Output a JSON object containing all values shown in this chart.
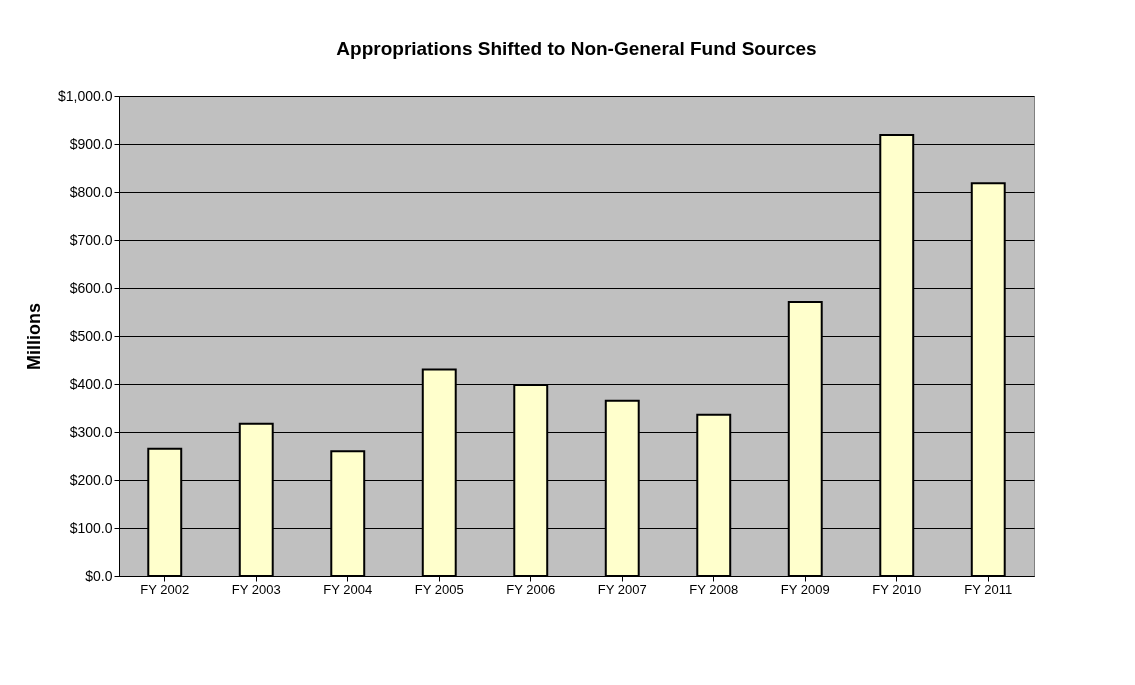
{
  "chart_data": {
    "type": "bar",
    "title": "Appropriations Shifted to Non-General Fund Sources",
    "ylabel": "Millions",
    "categories": [
      "FY 2002",
      "FY 2003",
      "FY 2004",
      "FY 2005",
      "FY 2006",
      "FY 2007",
      "FY 2008",
      "FY 2009",
      "FY 2010",
      "FY 2011"
    ],
    "values": [
      265,
      317,
      260,
      430,
      398,
      365,
      336,
      571,
      919,
      818
    ],
    "color": "#ffffcc",
    "ylim": [
      0,
      1000
    ],
    "yticks": [
      {
        "value": 0,
        "label": "$0.0"
      },
      {
        "value": 100,
        "label": "$100.0"
      },
      {
        "value": 200,
        "label": "$200.0"
      },
      {
        "value": 300,
        "label": "$300.0"
      },
      {
        "value": 400,
        "label": "$400.0"
      },
      {
        "value": 500,
        "label": "$500.0"
      },
      {
        "value": 600,
        "label": "$600.0"
      },
      {
        "value": 700,
        "label": "$700.0"
      },
      {
        "value": 800,
        "label": "$800.0"
      },
      {
        "value": 900,
        "label": "$900.0"
      },
      {
        "value": 1000,
        "label": "$1,000.0"
      }
    ],
    "grid": "y"
  }
}
